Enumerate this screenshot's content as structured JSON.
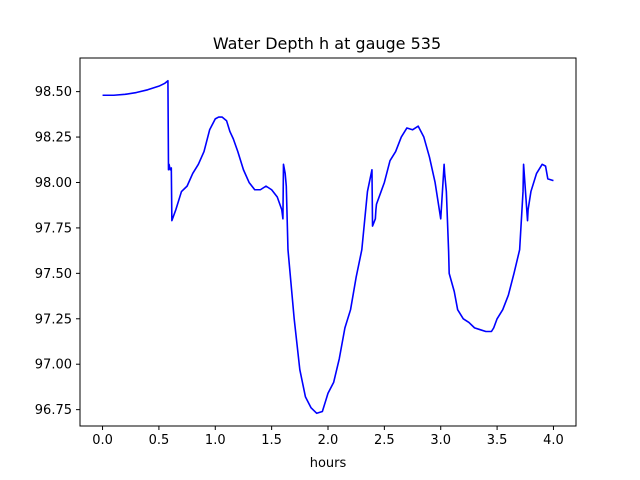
{
  "chart_data": {
    "type": "line",
    "title": "Water Depth h at gauge 535",
    "xlabel": "hours",
    "ylabel": "",
    "xlim": [
      -0.2,
      4.2
    ],
    "ylim": [
      96.66,
      98.685
    ],
    "xticks": [
      0.0,
      0.5,
      1.0,
      1.5,
      2.0,
      2.5,
      3.0,
      3.5,
      4.0
    ],
    "xtick_labels": [
      "0.0",
      "0.5",
      "1.0",
      "1.5",
      "2.0",
      "2.5",
      "3.0",
      "3.5",
      "4.0"
    ],
    "yticks": [
      96.75,
      97.0,
      97.25,
      97.5,
      97.75,
      98.0,
      98.25,
      98.5
    ],
    "ytick_labels": [
      "96.75",
      "97.00",
      "97.25",
      "97.50",
      "97.75",
      "98.00",
      "98.25",
      "98.50"
    ],
    "grid": false,
    "legend": "none",
    "series": [
      {
        "color": "#0000ff",
        "x": [
          0.0,
          0.1,
          0.2,
          0.3,
          0.4,
          0.5,
          0.55,
          0.58,
          0.585,
          0.59,
          0.6,
          0.61,
          0.615,
          0.65,
          0.7,
          0.75,
          0.8,
          0.85,
          0.9,
          0.95,
          1.0,
          1.03,
          1.06,
          1.1,
          1.13,
          1.16,
          1.2,
          1.25,
          1.3,
          1.35,
          1.4,
          1.45,
          1.5,
          1.55,
          1.59,
          1.6,
          1.605,
          1.62,
          1.63,
          1.645,
          1.7,
          1.75,
          1.8,
          1.85,
          1.9,
          1.95,
          1.98,
          2.0,
          2.05,
          2.1,
          2.15,
          2.2,
          2.25,
          2.3,
          2.35,
          2.39,
          2.395,
          2.42,
          2.425,
          2.43,
          2.5,
          2.55,
          2.6,
          2.65,
          2.7,
          2.75,
          2.8,
          2.85,
          2.9,
          2.95,
          3.0,
          3.03,
          3.035,
          3.05,
          3.07,
          3.075,
          3.12,
          3.15,
          3.2,
          3.25,
          3.3,
          3.35,
          3.4,
          3.45,
          3.47,
          3.5,
          3.55,
          3.6,
          3.65,
          3.7,
          3.73,
          3.735,
          3.77,
          3.775,
          3.8,
          3.85,
          3.9,
          3.93,
          3.95,
          4.0
        ],
        "y": [
          98.48,
          98.48,
          98.485,
          98.495,
          98.51,
          98.53,
          98.545,
          98.56,
          98.07,
          98.1,
          98.07,
          98.08,
          97.79,
          97.85,
          97.95,
          97.98,
          98.05,
          98.1,
          98.17,
          98.29,
          98.35,
          98.36,
          98.36,
          98.34,
          98.28,
          98.24,
          98.17,
          98.07,
          98.0,
          97.96,
          97.96,
          97.98,
          97.96,
          97.92,
          97.85,
          97.8,
          98.1,
          98.05,
          97.98,
          97.63,
          97.25,
          96.97,
          96.82,
          96.76,
          96.73,
          96.74,
          96.8,
          96.84,
          96.9,
          97.03,
          97.2,
          97.3,
          97.48,
          97.63,
          97.95,
          98.07,
          97.76,
          97.8,
          97.85,
          97.88,
          98.0,
          98.12,
          98.17,
          98.25,
          98.3,
          98.29,
          98.31,
          98.25,
          98.14,
          98.0,
          97.8,
          98.1,
          98.05,
          97.95,
          97.62,
          97.5,
          97.4,
          97.3,
          97.25,
          97.23,
          97.2,
          97.19,
          97.18,
          97.18,
          97.2,
          97.25,
          97.3,
          97.38,
          97.5,
          97.63,
          97.95,
          98.1,
          97.79,
          97.85,
          97.95,
          98.05,
          98.1,
          98.09,
          98.02,
          98.01
        ]
      }
    ]
  }
}
